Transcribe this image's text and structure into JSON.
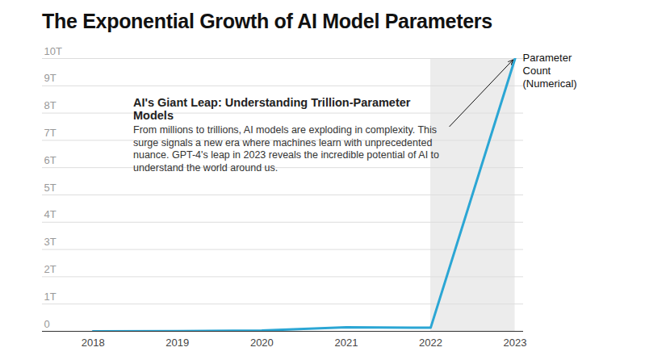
{
  "chart_data": {
    "type": "line",
    "title": "The Exponential Growth of AI Model Parameters",
    "x": [
      2018,
      2019,
      2020,
      2021,
      2022,
      2023
    ],
    "values": [
      0,
      0.01,
      0.03,
      0.15,
      0.13,
      10
    ],
    "color": "#2ba6d4",
    "xlim": [
      2017.4,
      2023.1
    ],
    "xticks": [
      2018,
      2019,
      2020,
      2021,
      2022,
      2023
    ],
    "ylim": [
      0,
      10
    ],
    "yticks": [
      0,
      {
        "value": 1,
        "label": "1T"
      },
      {
        "value": 2,
        "label": "2T"
      },
      {
        "value": 3,
        "label": "3T"
      },
      {
        "value": 4,
        "label": "4T"
      },
      {
        "value": 5,
        "label": "5T"
      },
      {
        "value": 6,
        "label": "6T"
      },
      {
        "value": 7,
        "label": "7T"
      },
      {
        "value": 8,
        "label": "8T"
      },
      {
        "value": 9,
        "label": "9T"
      },
      {
        "value": 10,
        "label": "10T"
      }
    ],
    "grid": true,
    "shaded_range": [
      2022,
      2023
    ],
    "annotations": [
      {
        "title": "AI's Giant Leap: Understanding Trillion-Parameter Models",
        "text": "From millions to trillions, AI models are exploding in complexity. This surge signals a new era where machines learn with unprecedented nuance. GPT-4's leap in 2023 reveals the incredible potential of AI to understand the world around us."
      },
      {
        "text": "Parameter Count (Numerical)"
      }
    ]
  }
}
